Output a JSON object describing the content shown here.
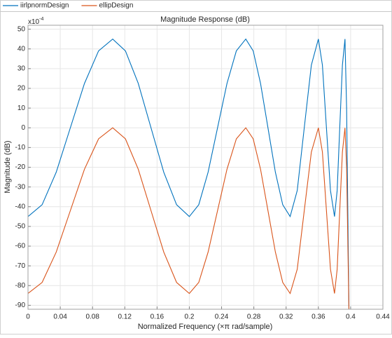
{
  "chart_data": {
    "type": "line",
    "title": "Magnitude Response (dB)",
    "x_label": "Normalized Frequency (×π rad/sample)",
    "y_label": "Magnitude (dB)",
    "y_multiplier": {
      "base": "x10",
      "exponent": "-4"
    },
    "xlim": [
      0,
      0.44
    ],
    "ylim": [
      -92,
      52
    ],
    "xticks": [
      0,
      0.04,
      0.08,
      0.12,
      0.16,
      0.2,
      0.24,
      0.28,
      0.32,
      0.36,
      0.4,
      0.44
    ],
    "yticks": [
      -90,
      -80,
      -70,
      -60,
      -50,
      -40,
      -30,
      -20,
      -10,
      0,
      10,
      20,
      30,
      40,
      50
    ],
    "grid": true,
    "legend": "top",
    "x": [
      0,
      0.0175,
      0.035,
      0.0525,
      0.07,
      0.0875,
      0.105,
      0.1208,
      0.1367,
      0.1525,
      0.1683,
      0.1842,
      0.2,
      0.2117,
      0.2233,
      0.235,
      0.2467,
      0.2583,
      0.27,
      0.2792,
      0.2883,
      0.2975,
      0.3067,
      0.3158,
      0.325,
      0.3338,
      0.3425,
      0.3513,
      0.36,
      0.365,
      0.37,
      0.375,
      0.38,
      0.3833,
      0.3865,
      0.3898,
      0.393,
      0.395,
      0.397,
      0.398
    ],
    "series": [
      {
        "name": "iirlpnormDesign",
        "color": "#0072bd",
        "values": [
          -45,
          -39,
          -22.5,
          0,
          22.5,
          39,
          45,
          39,
          22.5,
          0,
          -22.5,
          -39,
          -45,
          -39,
          -22.5,
          0,
          22.5,
          39,
          45,
          39,
          22.5,
          0,
          -22.5,
          -39,
          -45,
          -31.8,
          0,
          31.8,
          45,
          31.8,
          0,
          -31.8,
          -45,
          -31.8,
          0,
          31.8,
          45,
          10,
          -60,
          -95
        ]
      },
      {
        "name": "ellipDesign",
        "color": "#d95319",
        "values": [
          -84,
          -78.4,
          -63,
          -42,
          -21,
          -5.6,
          0,
          -5.6,
          -21,
          -42,
          -63,
          -78.4,
          -84,
          -78.4,
          -63,
          -42,
          -21,
          -5.6,
          0,
          -5.6,
          -21,
          -42,
          -63,
          -78.4,
          -84,
          -71.7,
          -42,
          -12.3,
          0,
          -12.3,
          -42,
          -71.7,
          -84,
          -71.7,
          -42,
          -12.3,
          0,
          -20,
          -70,
          -95
        ]
      }
    ]
  }
}
